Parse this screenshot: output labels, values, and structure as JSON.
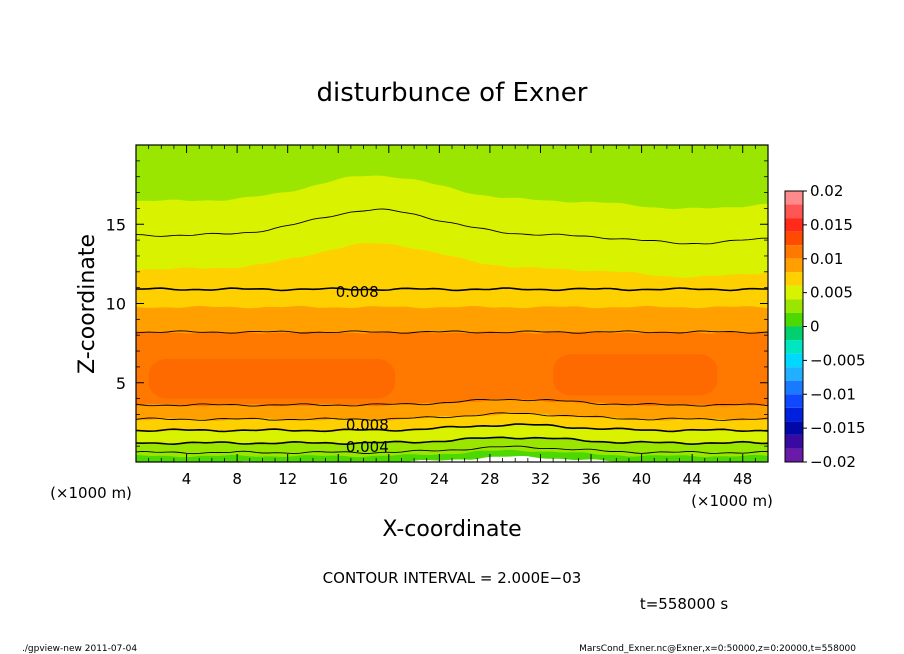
{
  "chart_data": {
    "type": "heatmap",
    "title": "disturbunce of Exner",
    "xlabel": "X-coordinate",
    "ylabel": "Z-coordinate",
    "x_unit": "(×1000 m)",
    "z_unit": "(×1000 m)",
    "xlim": [
      0,
      50
    ],
    "ylim": [
      0,
      20
    ],
    "x_ticks": [
      4,
      8,
      12,
      16,
      20,
      24,
      28,
      32,
      36,
      40,
      44,
      48
    ],
    "y_ticks": [
      5,
      10,
      15
    ],
    "colorbar": {
      "ticks": [
        0.02,
        0.015,
        0.01,
        0.005,
        0,
        -0.005,
        -0.01,
        -0.015,
        -0.02
      ],
      "tick_labels": [
        "0.02",
        "0.015",
        "0.01",
        "0.005",
        "0",
        "−0.005",
        "−0.01",
        "−0.015",
        "−0.02"
      ],
      "levels": [
        {
          "range": [
            0.018,
            0.02
          ],
          "color": "#ff8a8a"
        },
        {
          "range": [
            0.016,
            0.018
          ],
          "color": "#ff5555"
        },
        {
          "range": [
            0.014,
            0.016
          ],
          "color": "#ff2a1a"
        },
        {
          "range": [
            0.012,
            0.014
          ],
          "color": "#ff4a00"
        },
        {
          "range": [
            0.01,
            0.012
          ],
          "color": "#ff7800"
        },
        {
          "range": [
            0.008,
            0.01
          ],
          "color": "#ffa000"
        },
        {
          "range": [
            0.006,
            0.008
          ],
          "color": "#ffd000"
        },
        {
          "range": [
            0.004,
            0.006
          ],
          "color": "#d8f200"
        },
        {
          "range": [
            0.002,
            0.004
          ],
          "color": "#9ae600"
        },
        {
          "range": [
            0.0,
            0.002
          ],
          "color": "#4cd800"
        },
        {
          "range": [
            -0.002,
            0.0
          ],
          "color": "#00d070"
        },
        {
          "range": [
            -0.004,
            -0.002
          ],
          "color": "#00e6c0"
        },
        {
          "range": [
            -0.006,
            -0.004
          ],
          "color": "#00d8ff"
        },
        {
          "range": [
            -0.008,
            -0.006
          ],
          "color": "#20b0ff"
        },
        {
          "range": [
            -0.01,
            -0.008
          ],
          "color": "#1a7aff"
        },
        {
          "range": [
            -0.012,
            -0.01
          ],
          "color": "#1048ff"
        },
        {
          "range": [
            -0.014,
            -0.012
          ],
          "color": "#0020e0"
        },
        {
          "range": [
            -0.016,
            -0.014
          ],
          "color": "#0008a8"
        },
        {
          "range": [
            -0.018,
            -0.016
          ],
          "color": "#3a0aa0"
        },
        {
          "range": [
            -0.02,
            -0.018
          ],
          "color": "#6a1aa8"
        }
      ]
    },
    "bands": [
      {
        "value_range": [
          0.0,
          0.002
        ],
        "z_range": [
          0.0,
          0.4
        ],
        "color": "#4cd800"
      },
      {
        "value_range": [
          0.002,
          0.004
        ],
        "z_range": [
          0.4,
          1.2
        ],
        "color": "#9ae600"
      },
      {
        "value_range": [
          0.004,
          0.006
        ],
        "z_range": [
          1.2,
          2.0
        ],
        "color": "#d8f200"
      },
      {
        "value_range": [
          0.006,
          0.008
        ],
        "z_range": [
          2.0,
          2.7
        ],
        "color": "#ffd000"
      },
      {
        "value_range": [
          0.008,
          0.01
        ],
        "z_range": [
          2.7,
          3.6
        ],
        "color": "#ffa000"
      },
      {
        "value_range": [
          0.01,
          0.012
        ],
        "z_range": [
          3.6,
          8.2
        ],
        "color": "#ff7800"
      },
      {
        "value_range": [
          0.008,
          0.01
        ],
        "z_range": [
          8.2,
          9.8
        ],
        "color": "#ffa000"
      },
      {
        "value_range": [
          0.006,
          0.008
        ],
        "z_range": [
          9.8,
          12.2
        ],
        "color": "#ffd000"
      },
      {
        "value_range": [
          0.004,
          0.006
        ],
        "z_range": [
          12.2,
          16.5
        ],
        "color": "#d8f200"
      },
      {
        "value_range": [
          0.002,
          0.004
        ],
        "z_range": [
          16.5,
          20.0
        ],
        "color": "#9ae600"
      }
    ],
    "maxima": [
      {
        "value_range": [
          0.012,
          0.014
        ],
        "x_range": [
          1.0,
          20.5
        ],
        "z_range": [
          4.0,
          6.5
        ],
        "color": "#ff6a00"
      },
      {
        "value_range": [
          0.012,
          0.014
        ],
        "x_range": [
          33.0,
          46.0
        ],
        "z_range": [
          4.2,
          6.8
        ],
        "color": "#ff6a00"
      }
    ],
    "contour_labels": [
      {
        "text": "0.008",
        "x": 17.5,
        "z": 10.8
      },
      {
        "text": "0.008",
        "x": 18.3,
        "z": 2.4
      },
      {
        "text": "0.004",
        "x": 18.3,
        "z": 1.0
      }
    ],
    "contour_interval": "CONTOUR INTERVAL = 2.000E−03",
    "time": "t=558000 s"
  },
  "footer": {
    "left": "./gpview-new  2011-07-04",
    "right": "MarsCond_Exner.nc@Exner,x=0:50000,z=0:20000,t=558000"
  }
}
